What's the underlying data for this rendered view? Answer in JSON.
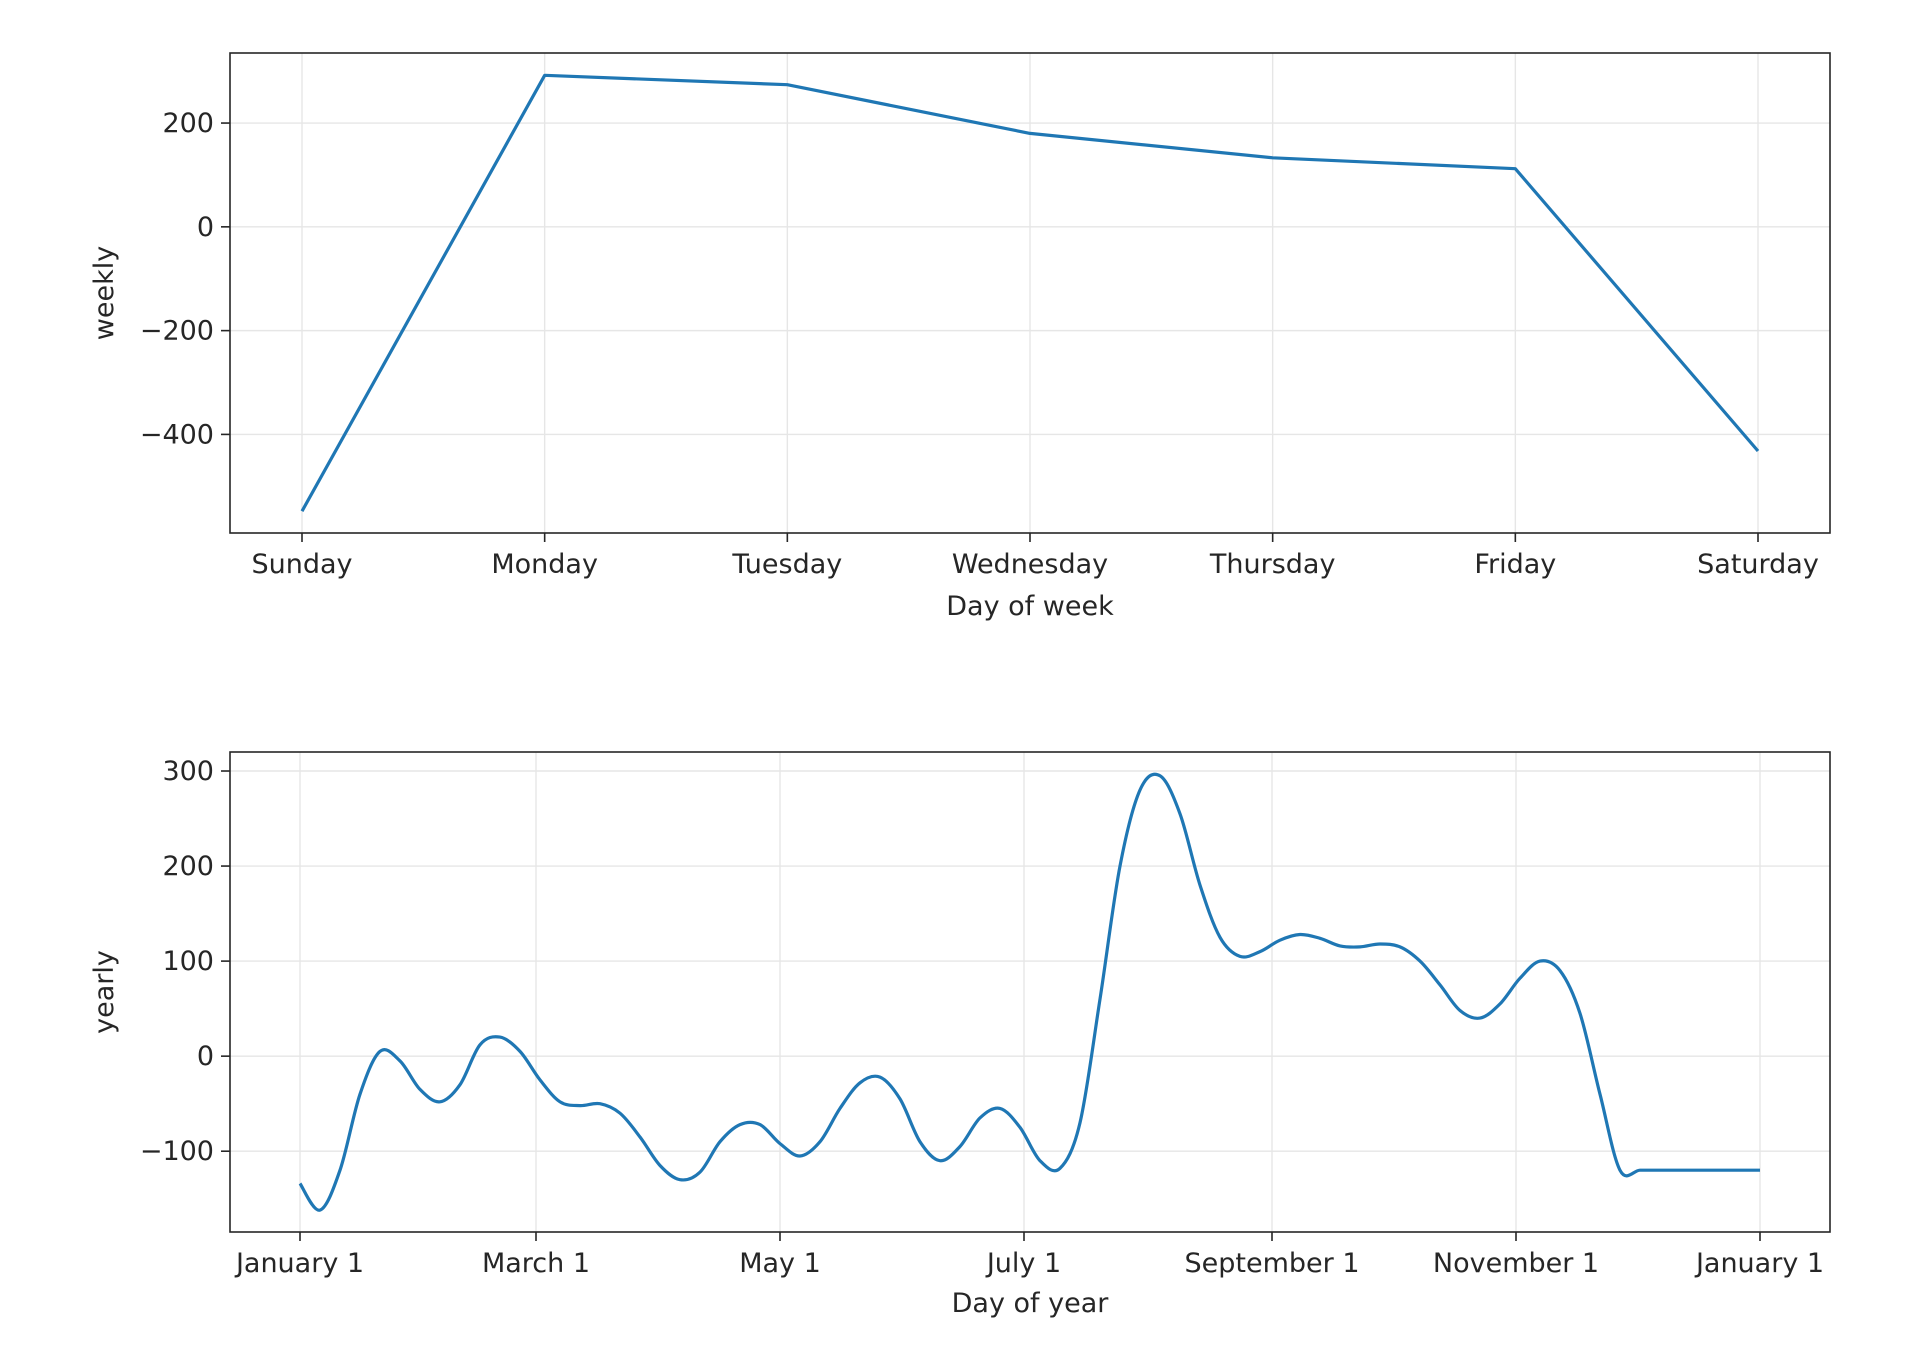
{
  "chart_data": [
    {
      "type": "line",
      "xlabel": "Day of week",
      "ylabel": "weekly",
      "categories": [
        "Sunday",
        "Monday",
        "Tuesday",
        "Wednesday",
        "Thursday",
        "Friday",
        "Saturday"
      ],
      "series": [
        {
          "values": [
            -548,
            292,
            274,
            180,
            133,
            112,
            -432
          ]
        }
      ],
      "yticks": [
        200,
        0,
        -200,
        -400
      ],
      "ytick_labels": [
        "200",
        "0",
        "−200",
        "−400"
      ],
      "ylim": [
        -590,
        335
      ],
      "grid": true,
      "color": "#1f77b4"
    },
    {
      "type": "line",
      "xlabel": "Day of year",
      "ylabel": "yearly",
      "xticks": [
        "January 1",
        "March 1",
        "May 1",
        "July 1",
        "September 1",
        "November 1",
        "January 1"
      ],
      "xtick_days": [
        0,
        59,
        120,
        181,
        243,
        304,
        365
      ],
      "x_days": [
        0,
        5,
        10,
        15,
        20,
        25,
        30,
        35,
        40,
        45,
        50,
        55,
        60,
        65,
        70,
        75,
        80,
        85,
        90,
        95,
        100,
        105,
        110,
        115,
        120,
        125,
        130,
        135,
        140,
        145,
        150,
        155,
        160,
        165,
        170,
        175,
        180,
        185,
        190,
        195,
        200,
        205,
        210,
        215,
        220,
        225,
        230,
        235,
        240,
        245,
        250,
        255,
        260,
        265,
        270,
        275,
        280,
        285,
        290,
        295,
        300,
        305,
        310,
        315,
        320,
        325,
        330,
        335,
        340,
        345,
        350,
        355,
        360,
        365
      ],
      "series": [
        {
          "values": [
            -134,
            -162,
            -120,
            -40,
            5,
            -5,
            -35,
            -48,
            -30,
            12,
            20,
            5,
            -25,
            -48,
            -52,
            -50,
            -60,
            -85,
            -115,
            -130,
            -122,
            -90,
            -72,
            -72,
            -92,
            -105,
            -90,
            -55,
            -28,
            -22,
            -45,
            -90,
            -110,
            -95,
            -65,
            -55,
            -75,
            -110,
            -118,
            -70,
            60,
            200,
            280,
            295,
            255,
            180,
            125,
            105,
            110,
            122,
            128,
            124,
            116,
            115,
            118,
            115,
            100,
            75,
            48,
            40,
            55,
            82,
            100,
            90,
            45,
            -40,
            -120,
            -120,
            -120,
            -120,
            -120,
            -120,
            -120,
            -120
          ]
        }
      ],
      "yticks": [
        300,
        200,
        100,
        0,
        -100
      ],
      "ytick_labels": [
        "300",
        "200",
        "100",
        "0",
        "−100"
      ],
      "ylim": [
        -185,
        320
      ],
      "grid": true,
      "color": "#1f77b4"
    }
  ]
}
